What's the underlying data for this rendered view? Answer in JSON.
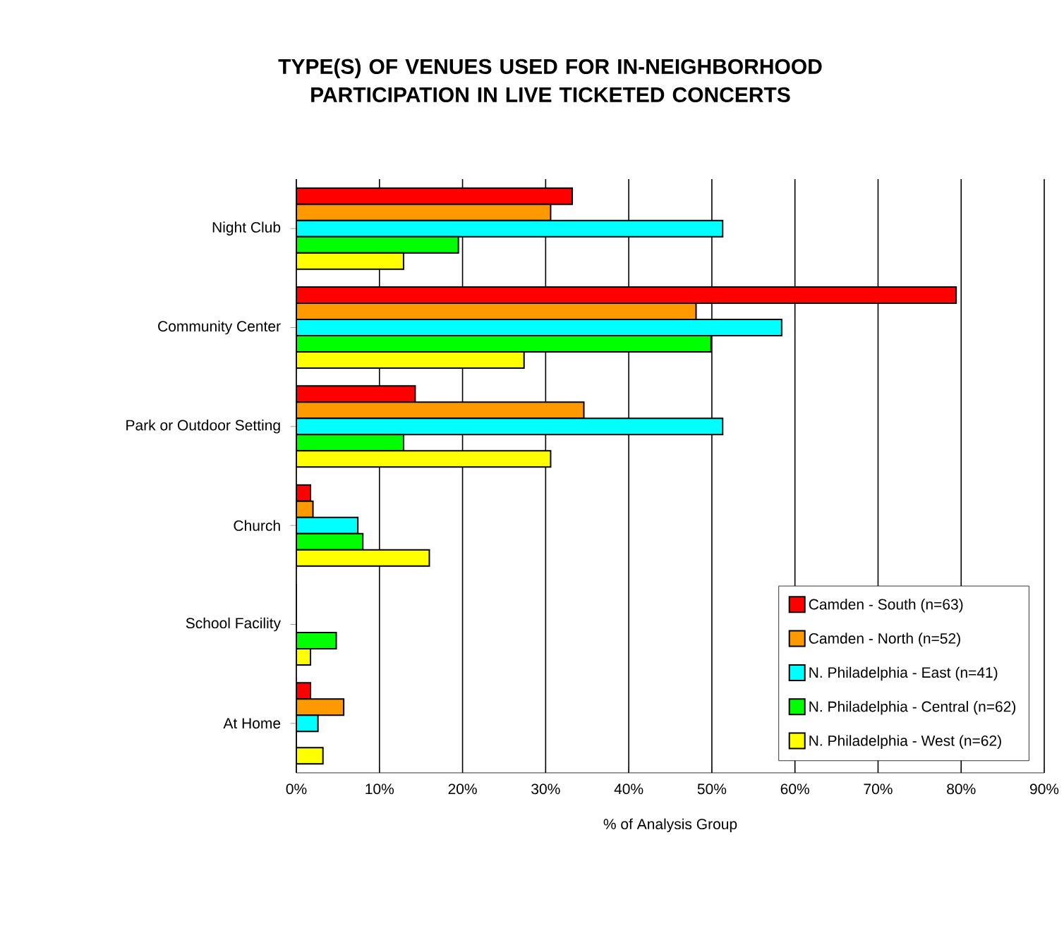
{
  "chart_data": {
    "type": "bar",
    "orientation": "horizontal",
    "title": "TYPE(S) OF VENUES USED FOR IN-NEIGHBORHOOD PARTICIPATION IN LIVE TICKETED CONCERTS",
    "xlabel": "% of Analysis Group",
    "categories": [
      "Night Club",
      "Community Center",
      "Park or Outdoor Setting",
      "Church",
      "School Facility",
      "At Home"
    ],
    "series": [
      {
        "name": "Camden - South (n=63)",
        "color": "#ff0000",
        "values": [
          33.2,
          79.4,
          14.3,
          1.7,
          0,
          1.7
        ]
      },
      {
        "name": "Camden - North (n=52)",
        "color": "#ff9900",
        "values": [
          30.6,
          48.1,
          34.6,
          2.0,
          0,
          5.7
        ]
      },
      {
        "name": "N. Philadelphia - East (n=41)",
        "color": "#00ffff",
        "values": [
          51.3,
          58.4,
          51.3,
          7.4,
          0,
          2.6
        ]
      },
      {
        "name": "N. Philadelphia - Central (n=62)",
        "color": "#00ff00",
        "values": [
          19.5,
          49.9,
          12.9,
          8.0,
          4.8,
          0
        ]
      },
      {
        "name": "N. Philadelphia - West (n=62)",
        "color": "#ffff00",
        "values": [
          12.9,
          27.4,
          30.6,
          16.0,
          1.7,
          3.2
        ]
      }
    ],
    "xlim": [
      0,
      90
    ],
    "xticks": [
      {
        "value": 0,
        "label": "0%"
      },
      {
        "value": 10,
        "label": "10%"
      },
      {
        "value": 20,
        "label": "20%"
      },
      {
        "value": 30,
        "label": "30%"
      },
      {
        "value": 40,
        "label": "40%"
      },
      {
        "value": 50,
        "label": "50%"
      },
      {
        "value": 60,
        "label": "60%"
      },
      {
        "value": 70,
        "label": "70%"
      },
      {
        "value": 80,
        "label": "80%"
      },
      {
        "value": 90,
        "label": "90%"
      }
    ],
    "grid": "x",
    "legend": "bottom right"
  }
}
